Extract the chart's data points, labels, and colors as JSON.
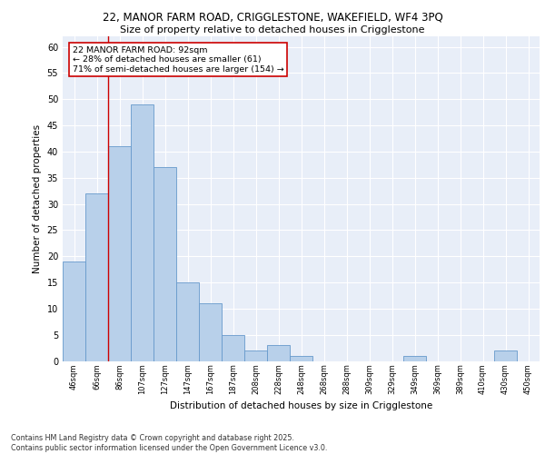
{
  "title_line1": "22, MANOR FARM ROAD, CRIGGLESTONE, WAKEFIELD, WF4 3PQ",
  "title_line2": "Size of property relative to detached houses in Crigglestone",
  "xlabel": "Distribution of detached houses by size in Crigglestone",
  "ylabel": "Number of detached properties",
  "categories": [
    "46sqm",
    "66sqm",
    "86sqm",
    "107sqm",
    "127sqm",
    "147sqm",
    "167sqm",
    "187sqm",
    "208sqm",
    "228sqm",
    "248sqm",
    "268sqm",
    "288sqm",
    "309sqm",
    "329sqm",
    "349sqm",
    "369sqm",
    "389sqm",
    "410sqm",
    "430sqm",
    "450sqm"
  ],
  "values": [
    19,
    32,
    41,
    49,
    37,
    15,
    11,
    5,
    2,
    3,
    1,
    0,
    0,
    0,
    0,
    1,
    0,
    0,
    0,
    2,
    0
  ],
  "bar_color": "#b8d0ea",
  "bar_edge_color": "#6699cc",
  "background_color": "#e8eef8",
  "grid_color": "#ffffff",
  "vline_index": 2,
  "vline_color": "#cc0000",
  "annotation_box_text": "22 MANOR FARM ROAD: 92sqm\n← 28% of detached houses are smaller (61)\n71% of semi-detached houses are larger (154) →",
  "footer_text": "Contains HM Land Registry data © Crown copyright and database right 2025.\nContains public sector information licensed under the Open Government Licence v3.0.",
  "ylim": [
    0,
    62
  ],
  "yticks": [
    0,
    5,
    10,
    15,
    20,
    25,
    30,
    35,
    40,
    45,
    50,
    55,
    60
  ]
}
